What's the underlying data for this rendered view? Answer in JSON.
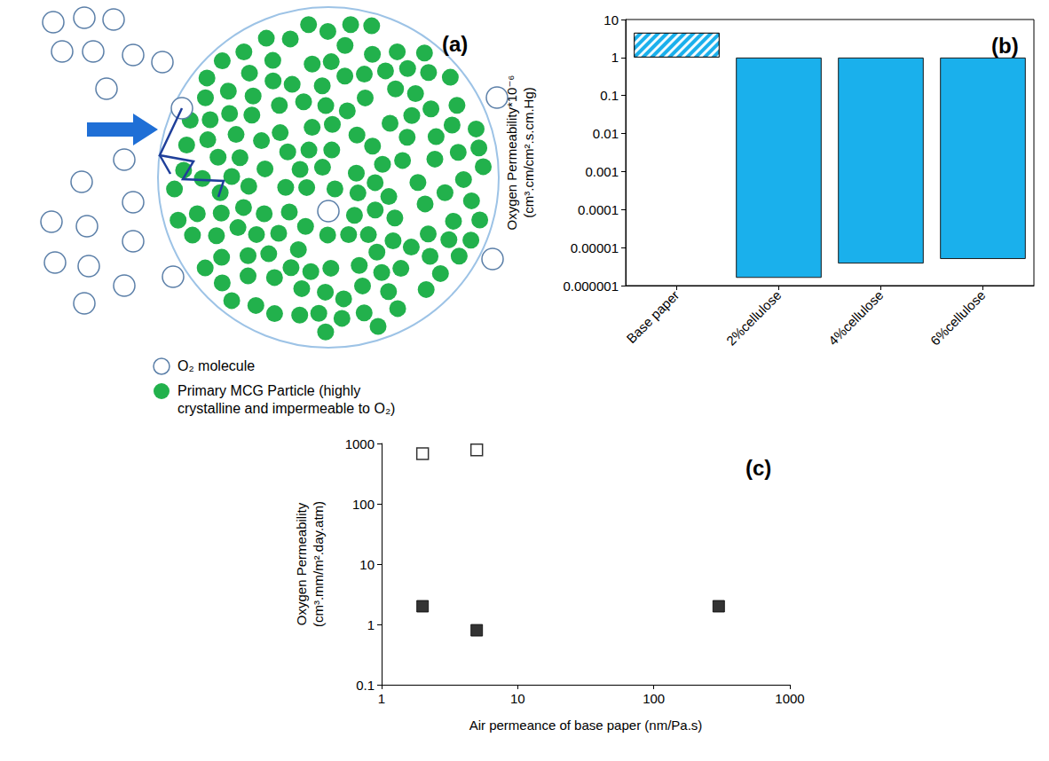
{
  "diagram": {
    "label": "(a)",
    "legend": [
      {
        "marker": "open circle",
        "color": "#ffffff",
        "text": "O₂ molecule"
      },
      {
        "marker": "filled circle",
        "color": "#22b14c",
        "text": "Primary MCG Particle (highly crystalline and impermeable to O₂)"
      }
    ]
  },
  "chart_data": [
    {
      "type": "bar",
      "title": "(b)",
      "categories": [
        "Base paper",
        "2%cellulose",
        "4%cellulose",
        "6%cellulose"
      ],
      "values": [
        4.5,
        1.6e-06,
        3.8e-06,
        5e-06
      ],
      "color": "#1ab0ec",
      "y_label": "Oxygen Permeability*10⁻⁶ (cm³.cm/cm².s.cm.Hg)",
      "ylim": [
        1e-06,
        10
      ],
      "yticks": [
        1e-06,
        1e-05,
        0.0001,
        0.001,
        0.01,
        0.1,
        1,
        10
      ],
      "log": "y",
      "grid": false
    },
    {
      "type": "scatter",
      "title": "(c)",
      "x_label": "Air permeance of base paper (nm/Pa.s)",
      "y_label": "Oxygen Permeability (cm³.mm/m².day.atm)",
      "xlim": [
        1,
        1000
      ],
      "xticks": [
        1,
        10,
        100,
        1000
      ],
      "ylim": [
        0.1,
        1000
      ],
      "yticks": [
        0.1,
        1,
        10,
        100,
        1000
      ],
      "log": true,
      "grid": false,
      "series": [
        {
          "marker": "square-open",
          "color": "#000000",
          "x": [
            2,
            5
          ],
          "values": [
            680,
            780
          ]
        },
        {
          "marker": "square",
          "color": "#000000",
          "x": [
            2,
            5,
            300
          ],
          "values": [
            2,
            0.8,
            2
          ]
        }
      ]
    }
  ]
}
